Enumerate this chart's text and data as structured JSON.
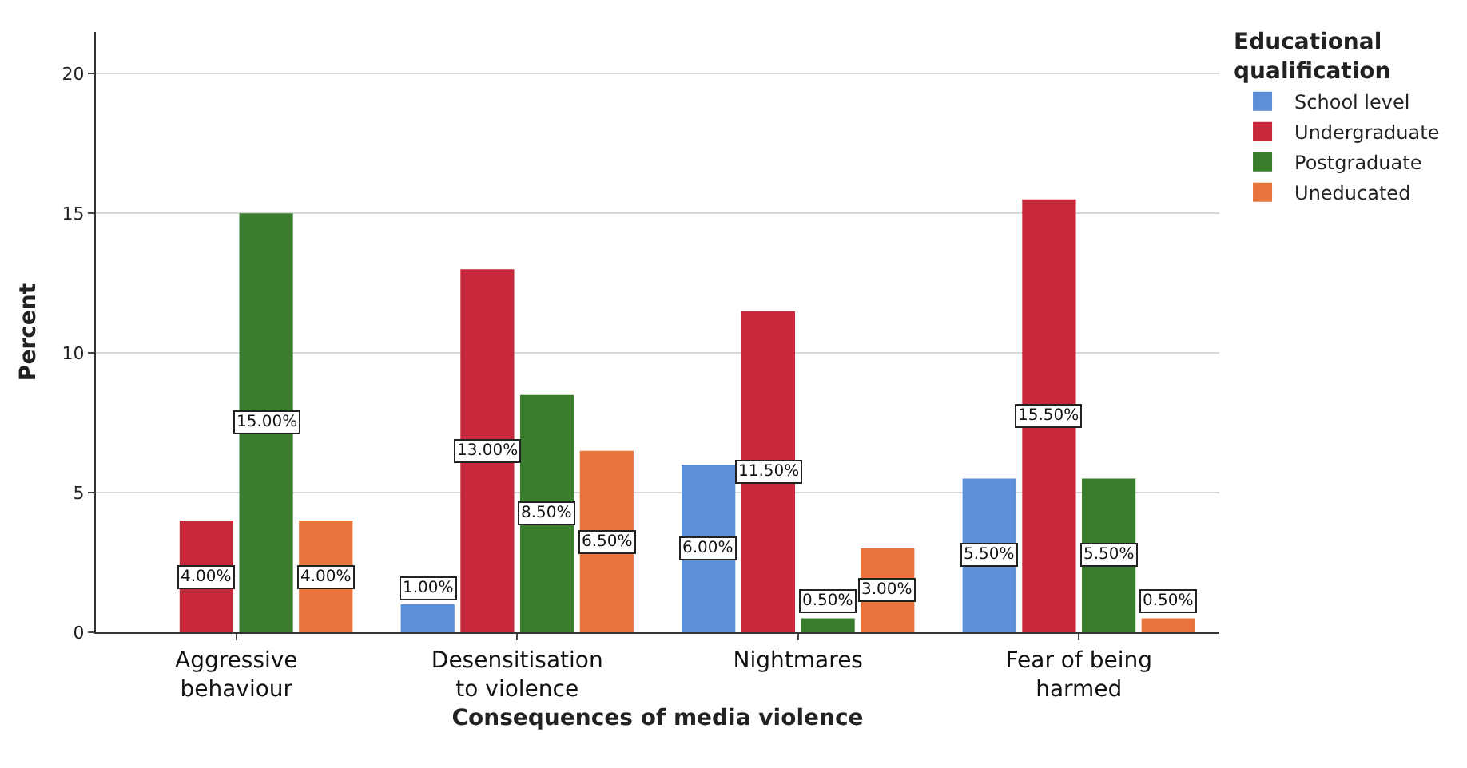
{
  "chart_data": {
    "type": "bar",
    "xlabel": "Consequences of media violence",
    "ylabel": "Percent",
    "legend_title": "Educational qualification",
    "categories": [
      "Aggressive behaviour",
      "Desensitisation to violence",
      "Nightmares",
      "Fear of being harmed"
    ],
    "series": [
      {
        "name": "School level",
        "color": "#5b8fd9",
        "values": [
          null,
          1,
          6,
          5.5
        ],
        "value_labels": [
          null,
          "1.00%",
          "6.00%",
          "5.50%"
        ]
      },
      {
        "name": "Undergraduate",
        "color": "#c8283c",
        "values": [
          4,
          13,
          11.5,
          15.5
        ],
        "value_labels": [
          "4.00%",
          "13.00%",
          "11.50%",
          "15.50%"
        ]
      },
      {
        "name": "Postgraduate",
        "color": "#3a7d2c",
        "values": [
          15,
          8.5,
          0.5,
          5.5
        ],
        "value_labels": [
          "15.00%",
          "8.50%",
          "0.50%",
          "5.50%"
        ]
      },
      {
        "name": "Uneducated",
        "color": "#e8743b",
        "values": [
          4,
          6.5,
          3,
          0.5
        ],
        "value_labels": [
          "4.00%",
          "6.50%",
          "3.00%",
          "0.50%"
        ]
      }
    ],
    "ylim": [
      0,
      21.5
    ],
    "yticks": [
      0,
      5,
      10,
      15,
      20
    ],
    "grid": "y",
    "legend": "top right"
  }
}
